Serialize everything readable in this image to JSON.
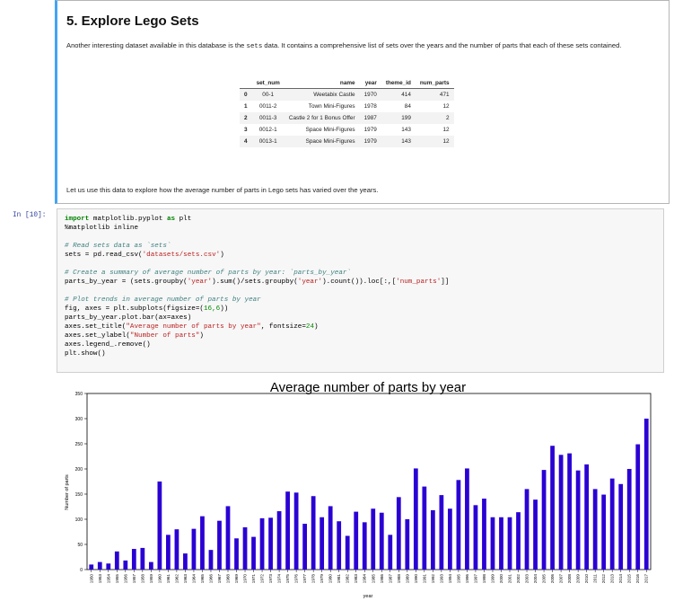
{
  "markdown": {
    "title": "5. Explore Lego Sets",
    "para_a": "Another interesting dataset available in this database is the ",
    "para_code": "sets",
    "para_b": " data. It contains a comprehensive list of sets over the years and the number of parts that each of these sets contained.",
    "table": {
      "headers": [
        "",
        "set_num",
        "name",
        "year",
        "theme_id",
        "num_parts"
      ],
      "rows": [
        [
          "0",
          "00-1",
          "Weetabix Castle",
          "1970",
          "414",
          "471"
        ],
        [
          "1",
          "0011-2",
          "Town Mini-Figures",
          "1978",
          "84",
          "12"
        ],
        [
          "2",
          "0011-3",
          "Castle 2 for 1 Bonus Offer",
          "1987",
          "199",
          "2"
        ],
        [
          "3",
          "0012-1",
          "Space Mini-Figures",
          "1979",
          "143",
          "12"
        ],
        [
          "4",
          "0013-1",
          "Space Mini-Figures",
          "1979",
          "143",
          "12"
        ]
      ]
    },
    "after": "Let us use this data to explore how the average number of parts in Lego sets has varied over the years."
  },
  "cell": {
    "prompt": "In [10]:"
  },
  "code": {
    "l1": {
      "kw1": "import",
      "mod": " matplotlib.pyplot ",
      "kw2": "as",
      "alias": " plt"
    },
    "l2": "%matplotlib inline",
    "l4": "# Read sets data as `sets`",
    "l5": {
      "a": "sets = pd.read_csv(",
      "s": "'datasets/sets.csv'",
      "b": ")"
    },
    "l7": "# Create a summary of average number of parts by year: `parts_by_year`",
    "l8": {
      "a": "parts_by_year = (sets.groupby(",
      "s1": "'year'",
      "b": ").sum()/sets.groupby(",
      "s2": "'year'",
      "c": ").count()).loc[:,[",
      "s3": "'num_parts'",
      "d": "]]"
    },
    "l10": "# Plot trends in average number of parts by year",
    "l11": {
      "a": "fig, axes = plt.subplots(figsize=(",
      "n": "16,6",
      "b": "))"
    },
    "l12": "parts_by_year.plot.bar(ax=axes)",
    "l13": {
      "a": "axes.set_title(",
      "s": "\"Average number of parts by year\"",
      "b": ", fontsize=",
      "n": "24",
      "c": ")"
    },
    "l14": {
      "a": "axes.set_ylabel(",
      "s": "\"Number of parts\"",
      "b": ")"
    },
    "l15": "axes.legend_.remove()",
    "l16": "plt.show()"
  },
  "chart_data": {
    "type": "bar",
    "title": "Average number of parts by year",
    "xlabel": "year",
    "ylabel": "Number of parts",
    "ylim": [
      0,
      350
    ],
    "yticks": [
      0,
      50,
      100,
      150,
      200,
      250,
      300,
      350
    ],
    "legend": "none",
    "bar_color": "#2a00d4",
    "categories": [
      "1950",
      "1953",
      "1954",
      "1955",
      "1956",
      "1957",
      "1958",
      "1959",
      "1960",
      "1961",
      "1962",
      "1963",
      "1964",
      "1965",
      "1966",
      "1967",
      "1968",
      "1969",
      "1970",
      "1971",
      "1972",
      "1973",
      "1974",
      "1975",
      "1976",
      "1977",
      "1978",
      "1979",
      "1980",
      "1981",
      "1982",
      "1983",
      "1984",
      "1985",
      "1986",
      "1987",
      "1988",
      "1989",
      "1990",
      "1991",
      "1992",
      "1993",
      "1994",
      "1995",
      "1996",
      "1997",
      "1998",
      "1999",
      "2000",
      "2001",
      "2002",
      "2003",
      "2004",
      "2005",
      "2006",
      "2007",
      "2008",
      "2009",
      "2010",
      "2011",
      "2012",
      "2013",
      "2014",
      "2015",
      "2016",
      "2017"
    ],
    "values": [
      10,
      15,
      12,
      36,
      18,
      41,
      43,
      15,
      175,
      69,
      80,
      32,
      81,
      106,
      39,
      97,
      126,
      62,
      84,
      65,
      102,
      103,
      116,
      155,
      153,
      91,
      146,
      104,
      126,
      96,
      67,
      115,
      94,
      121,
      113,
      69,
      144,
      100,
      201,
      165,
      118,
      148,
      121,
      178,
      201,
      128,
      141,
      104,
      104,
      104,
      114,
      160,
      139,
      198,
      246,
      228,
      231,
      197,
      209,
      160,
      149,
      181,
      170,
      200,
      249,
      300
    ]
  }
}
